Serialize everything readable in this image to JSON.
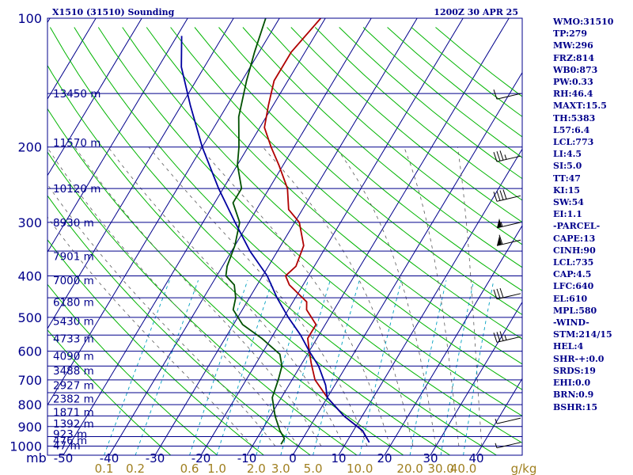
{
  "header": {
    "station": "X1510 (31510) Sounding",
    "time": "1200Z 30 APR 25"
  },
  "indices": [
    "WMO:31510",
    "TP:279",
    "MW:296",
    "FRZ:814",
    "WB0:873",
    "PW:0.33",
    "RH:46.4",
    "MAXT:15.5",
    "TH:5383",
    "L57:6.4",
    "LCL:773",
    "LI:4.5",
    "SI:5.0",
    "TT:47",
    "KI:15",
    "SW:54",
    "EI:1.1",
    "-PARCEL-",
    "CAPE:13",
    "CINH:90",
    "LCL:735",
    "CAP:4.5",
    "LFC:640",
    "EL:610",
    "MPL:580",
    "-WIND-",
    "STM:214/15",
    "HEL:4",
    "SHR-+:0.0",
    "SRDS:19",
    "EHI:0.0",
    "BRN:0.9",
    "BSHR:15"
  ],
  "chart_data": {
    "type": "line",
    "title": "X1510 (31510) Sounding",
    "pressure_unit": "mb",
    "pressure_labels": [
      100,
      200,
      300,
      400,
      500,
      600,
      700,
      800,
      900,
      1000
    ],
    "temperature_ticks": [
      -50,
      -40,
      -30,
      -20,
      -10,
      0,
      10,
      20,
      30,
      40
    ],
    "mixing_ratio_unit": "g/kg",
    "mixing_ratio_ticks": [
      "0.1",
      "0.2",
      "0.6",
      "1.0",
      "2.0",
      "3.0",
      "5.0",
      "10.0",
      "20.0",
      "30.0",
      "40.0"
    ],
    "height_levels": [
      {
        "p": 150,
        "label": "13450 m"
      },
      {
        "p": 195,
        "label": "11570 m"
      },
      {
        "p": 250,
        "label": "10120 m"
      },
      {
        "p": 300,
        "label": "8930 m"
      },
      {
        "p": 360,
        "label": "7901 m"
      },
      {
        "p": 410,
        "label": "7000 m"
      },
      {
        "p": 460,
        "label": "6180 m"
      },
      {
        "p": 510,
        "label": "5430 m"
      },
      {
        "p": 560,
        "label": "4733 m"
      },
      {
        "p": 615,
        "label": "4090 m"
      },
      {
        "p": 665,
        "label": "3488 m"
      },
      {
        "p": 720,
        "label": "2927 m"
      },
      {
        "p": 775,
        "label": "2382 m"
      },
      {
        "p": 832,
        "label": "1871 m"
      },
      {
        "p": 885,
        "label": "1392 m"
      },
      {
        "p": 935,
        "label": "923 m"
      },
      {
        "p": 968,
        "label": "476 m"
      },
      {
        "p": 995,
        "label": "47 m"
      }
    ],
    "series": [
      {
        "name": "temperature",
        "color": "#b00000",
        "points": [
          [
            960,
            14
          ],
          [
            920,
            12
          ],
          [
            850,
            6
          ],
          [
            770,
            0
          ],
          [
            700,
            -5
          ],
          [
            640,
            -8
          ],
          [
            600,
            -10
          ],
          [
            560,
            -12
          ],
          [
            520,
            -12
          ],
          [
            480,
            -16
          ],
          [
            460,
            -17
          ],
          [
            420,
            -23
          ],
          [
            400,
            -25
          ],
          [
            380,
            -24
          ],
          [
            340,
            -25
          ],
          [
            300,
            -29
          ],
          [
            280,
            -33
          ],
          [
            250,
            -36
          ],
          [
            220,
            -41
          ],
          [
            200,
            -45
          ],
          [
            180,
            -49
          ],
          [
            160,
            -51
          ],
          [
            140,
            -53
          ],
          [
            120,
            -53
          ],
          [
            100,
            -51
          ]
        ]
      },
      {
        "name": "dewpoint",
        "color": "#005000",
        "points": [
          [
            990,
            -4
          ],
          [
            960,
            -4
          ],
          [
            920,
            -6
          ],
          [
            850,
            -9
          ],
          [
            770,
            -12
          ],
          [
            700,
            -13
          ],
          [
            650,
            -14
          ],
          [
            610,
            -16
          ],
          [
            560,
            -22
          ],
          [
            520,
            -28
          ],
          [
            480,
            -32
          ],
          [
            450,
            -33
          ],
          [
            420,
            -35
          ],
          [
            400,
            -38
          ],
          [
            380,
            -39
          ],
          [
            340,
            -40
          ],
          [
            300,
            -42
          ],
          [
            270,
            -46
          ],
          [
            250,
            -46
          ],
          [
            220,
            -50
          ],
          [
            200,
            -52
          ],
          [
            170,
            -56
          ],
          [
            140,
            -59
          ],
          [
            120,
            -61
          ],
          [
            100,
            -63
          ]
        ]
      },
      {
        "name": "parcel",
        "color": "#0000a0",
        "points": [
          [
            980,
            15
          ],
          [
            920,
            12
          ],
          [
            850,
            6
          ],
          [
            770,
            0
          ],
          [
            720,
            -2
          ],
          [
            650,
            -6
          ],
          [
            600,
            -10
          ],
          [
            550,
            -14
          ],
          [
            500,
            -19
          ],
          [
            450,
            -24
          ],
          [
            400,
            -29
          ],
          [
            350,
            -36
          ],
          [
            300,
            -43
          ],
          [
            250,
            -51
          ],
          [
            200,
            -60
          ],
          [
            160,
            -68
          ],
          [
            130,
            -75
          ],
          [
            110,
            -79
          ]
        ]
      }
    ],
    "wind_barbs": [
      {
        "p": 150,
        "speed": 10
      },
      {
        "p": 210,
        "speed": 35
      },
      {
        "p": 260,
        "speed": 40
      },
      {
        "p": 300,
        "speed": 55
      },
      {
        "p": 330,
        "speed": 60
      },
      {
        "p": 440,
        "speed": 30
      },
      {
        "p": 555,
        "speed": 35
      },
      {
        "p": 860,
        "speed": 5
      },
      {
        "p": 980,
        "speed": 5
      }
    ],
    "colors": {
      "isobar": "#00008b",
      "isotherm": "#00008b",
      "dry_adiabat": "#00b400",
      "moist_adiabat": "#5a5a5a",
      "mixing_ratio": "#00a0c0",
      "temperature": "#b00000",
      "dewpoint": "#005000",
      "parcel": "#0000a0"
    }
  }
}
